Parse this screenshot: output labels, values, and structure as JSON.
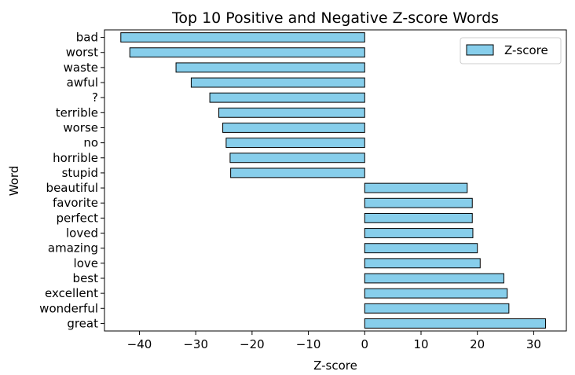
{
  "chart_data": {
    "type": "bar",
    "orientation": "horizontal",
    "title": "Top 10 Positive and Negative Z-score Words",
    "xlabel": "Z-score",
    "ylabel": "Word",
    "categories": [
      "bad",
      "worst",
      "waste",
      "awful",
      "?",
      "terrible",
      "worse",
      "no",
      "horrible",
      "stupid",
      "beautiful",
      "favorite",
      "perfect",
      "loved",
      "amazing",
      "love",
      "best",
      "excellent",
      "wonderful",
      "great"
    ],
    "series": [
      {
        "name": "Z-score",
        "values": [
          -43.3,
          -41.7,
          -33.5,
          -30.8,
          -27.5,
          -25.9,
          -25.2,
          -24.6,
          -23.9,
          -23.8,
          18.2,
          19.1,
          19.1,
          19.2,
          20.0,
          20.5,
          24.7,
          25.3,
          25.6,
          32.1
        ]
      }
    ],
    "xlim": [
      -46.2,
      35.8
    ],
    "xticks": [
      -40,
      -30,
      -20,
      -10,
      0,
      10,
      20,
      30
    ],
    "xtick_labels": [
      "−40",
      "−30",
      "−20",
      "−10",
      "0",
      "10",
      "20",
      "30"
    ],
    "grid": false,
    "legend": {
      "placement": "upper right",
      "entries": [
        "Z-score"
      ]
    },
    "colors": {
      "bar_fill": "#87ceeb",
      "bar_edge": "#000000"
    }
  }
}
